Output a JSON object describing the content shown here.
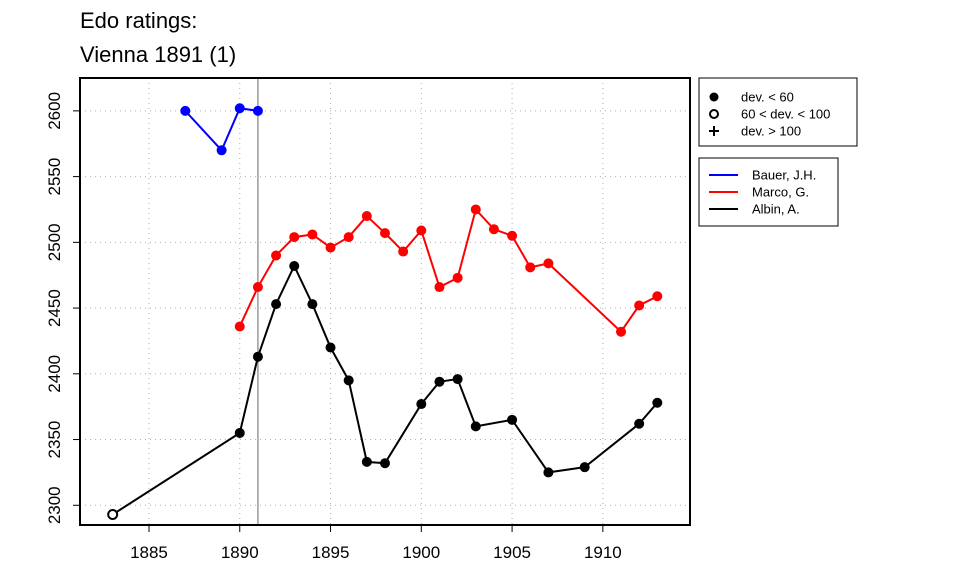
{
  "title_line1": "Edo ratings:",
  "title_line2": "Vienna 1891 (1)",
  "chart_data": {
    "type": "line",
    "title": "Edo ratings: Vienna 1891 (1)",
    "xlabel": "",
    "ylabel": "",
    "xlim": [
      1881.2,
      1914.8
    ],
    "ylim": [
      2285,
      2625
    ],
    "x_ticks": [
      "1885",
      "1890",
      "1895",
      "1900",
      "1905",
      "1910"
    ],
    "y_ticks": [
      "2300",
      "2350",
      "2400",
      "2450",
      "2500",
      "2550",
      "2600"
    ],
    "grid": true,
    "reference_line_x": 1891,
    "symbol_legend": [
      {
        "label": "dev. < 60",
        "symbol": "filled-circle"
      },
      {
        "label": "60 < dev. < 100",
        "symbol": "open-circle"
      },
      {
        "label": "dev. > 100",
        "symbol": "plus"
      }
    ],
    "series": [
      {
        "name": "Bauer, J.H.",
        "color": "#0000ff",
        "x": [
          1887,
          1889,
          1890,
          1891
        ],
        "y": [
          2600,
          2570,
          2602,
          2600
        ],
        "marker": [
          "filled",
          "filled",
          "filled",
          "filled"
        ]
      },
      {
        "name": "Marco, G.",
        "color": "#ff0000",
        "x": [
          1890,
          1891,
          1892,
          1893,
          1894,
          1895,
          1896,
          1897,
          1898,
          1899,
          1900,
          1901,
          1902,
          1903,
          1904,
          1905,
          1906,
          1907,
          1911,
          1912,
          1913
        ],
        "y": [
          2436,
          2466,
          2490,
          2504,
          2506,
          2496,
          2504,
          2520,
          2507,
          2493,
          2509,
          2466,
          2473,
          2525,
          2510,
          2505,
          2481,
          2484,
          2432,
          2452,
          2459
        ],
        "marker": [
          "filled",
          "filled",
          "filled",
          "filled",
          "filled",
          "filled",
          "filled",
          "filled",
          "filled",
          "filled",
          "filled",
          "filled",
          "filled",
          "filled",
          "filled",
          "filled",
          "filled",
          "filled",
          "filled",
          "filled",
          "filled"
        ]
      },
      {
        "name": "Albin, A.",
        "color": "#000000",
        "x": [
          1883,
          1890,
          1891,
          1892,
          1893,
          1894,
          1895,
          1896,
          1897,
          1898,
          1900,
          1901,
          1902,
          1903,
          1905,
          1907,
          1909,
          1912,
          1913
        ],
        "y": [
          2293,
          2355,
          2413,
          2453,
          2482,
          2453,
          2420,
          2395,
          2333,
          2332,
          2377,
          2394,
          2396,
          2360,
          2365,
          2325,
          2329,
          2362,
          2378
        ],
        "marker": [
          "open",
          "filled",
          "filled",
          "filled",
          "filled",
          "filled",
          "filled",
          "filled",
          "filled",
          "filled",
          "filled",
          "filled",
          "filled",
          "filled",
          "filled",
          "filled",
          "filled",
          "filled",
          "filled"
        ]
      }
    ]
  }
}
